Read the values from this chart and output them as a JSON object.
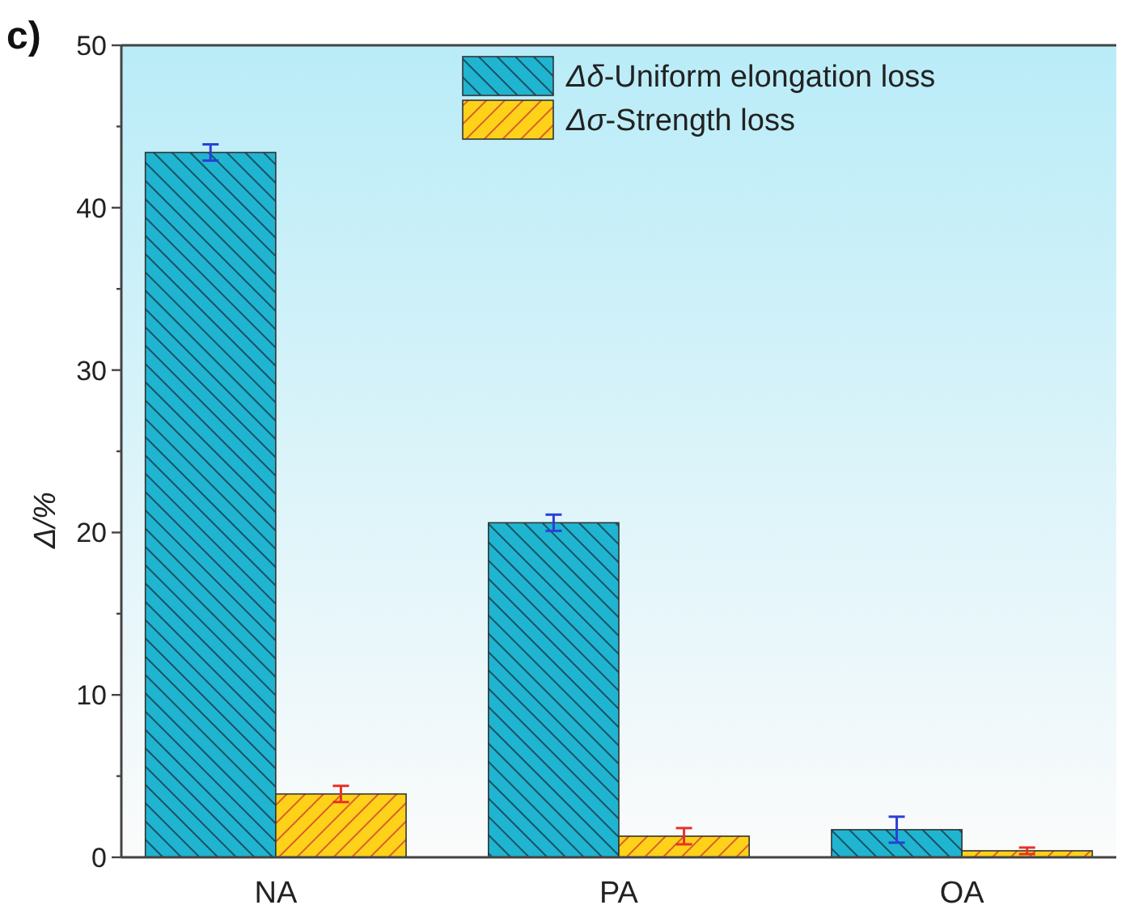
{
  "chart_data": {
    "type": "bar",
    "title": "c)",
    "ylabel": "Δ/%",
    "categories": [
      "NA",
      "PA",
      "OA"
    ],
    "series": [
      {
        "name": "Δδ-Uniform elongation loss",
        "color": "#1fb5d0",
        "values": [
          43.4,
          20.6,
          1.7
        ],
        "errors": [
          0.5,
          0.5,
          0.8
        ]
      },
      {
        "name": "Δσ-Strength loss",
        "color": "#ffd21a",
        "values": [
          3.9,
          1.3,
          0.4
        ],
        "errors": [
          0.5,
          0.5,
          0.2
        ]
      }
    ],
    "ylim": [
      0,
      50
    ],
    "yticks": [
      0,
      {
        "value": 5,
        "label": null
      },
      10,
      {
        "value": 15,
        "label": null
      },
      20,
      {
        "value": 25,
        "label": null
      },
      30,
      {
        "value": 35,
        "label": null
      },
      40,
      {
        "value": 45,
        "label": null
      },
      50
    ],
    "legend": "top right"
  }
}
